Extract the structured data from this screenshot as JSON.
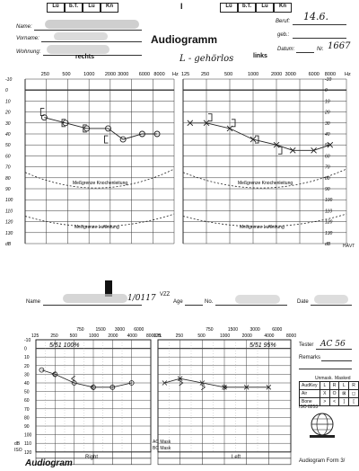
{
  "top_form": {
    "boxes_left": [
      "Lü",
      "b.T.",
      "Lu",
      "Kn"
    ],
    "boxes_right": [
      "Lü",
      "b.T.",
      "Lu",
      "Kn"
    ],
    "center_mark": "I",
    "name_label": "Name:",
    "vorname_label": "Vorname:",
    "wohnung_label": "Wohnung:",
    "beruf_label": "Beruf:",
    "geb_label": "geb.:",
    "datum_label": "Datum:",
    "nr_label": "Nr.",
    "date_hw": "14.6.",
    "nr_hw": "1667",
    "title": "Audiogramm",
    "rechts": "rechts",
    "links": "links",
    "note_hw": "L - gehörlos",
    "freq_labels": [
      "250",
      "500",
      "1000",
      "2000",
      "3000",
      "6000",
      "8000"
    ],
    "freq_g": "Hz G",
    "freq_low": "125",
    "hz": "Hz",
    "db_labels": [
      "-10",
      "0",
      "10",
      "20",
      "30",
      "40",
      "50",
      "60",
      "70",
      "80",
      "90",
      "100",
      "110",
      "120",
      "130",
      "dB"
    ],
    "knochen_label": "Meßgrenze  Knochenleitung",
    "luft_label": "Meßgrenze  Luftleitung",
    "corner_note": "HÄVT"
  },
  "bottom_form": {
    "name_label": "Name",
    "name_hw": "1/0117",
    "vzz": "VZZ",
    "age_label": "Age",
    "no_label": "No.",
    "date_label": "Date",
    "freq_top": [
      "750",
      "1500",
      "3000",
      "6000"
    ],
    "freq_bottom": [
      "125",
      "250",
      "500",
      "1000",
      "2000",
      "4000",
      "8000 Hz"
    ],
    "db_labels": [
      "-10",
      "0",
      "10",
      "20",
      "30",
      "40",
      "50",
      "60",
      "70",
      "80",
      "90",
      "100",
      "110",
      "120"
    ],
    "db_axis": [
      "dB",
      "ISO"
    ],
    "right_hw": "5/51 100%",
    "left_hw": "5/51 95%",
    "tester_label": "Tester",
    "tester_hw": "AC 56",
    "remarks_label": "Remarks",
    "legend_header": [
      "Unmask.",
      "Masked"
    ],
    "legend_rows": [
      {
        "label": "AudKey",
        "cells": [
          "L",
          "R",
          "L",
          "R"
        ]
      },
      {
        "label": "Air",
        "cells": [
          "X",
          "O",
          "⊠",
          "◻"
        ]
      },
      {
        "label": "Bone",
        "cells": [
          ">",
          "<",
          "]",
          "["
        ]
      }
    ],
    "iso_label": "ISO 8253",
    "ac_mask": "AC Mask",
    "bc_mask": "BC Mask",
    "right_label": "Right",
    "left_label": "Left",
    "title": "Audiogram",
    "form_label": "Audiogram Form 3/"
  }
}
